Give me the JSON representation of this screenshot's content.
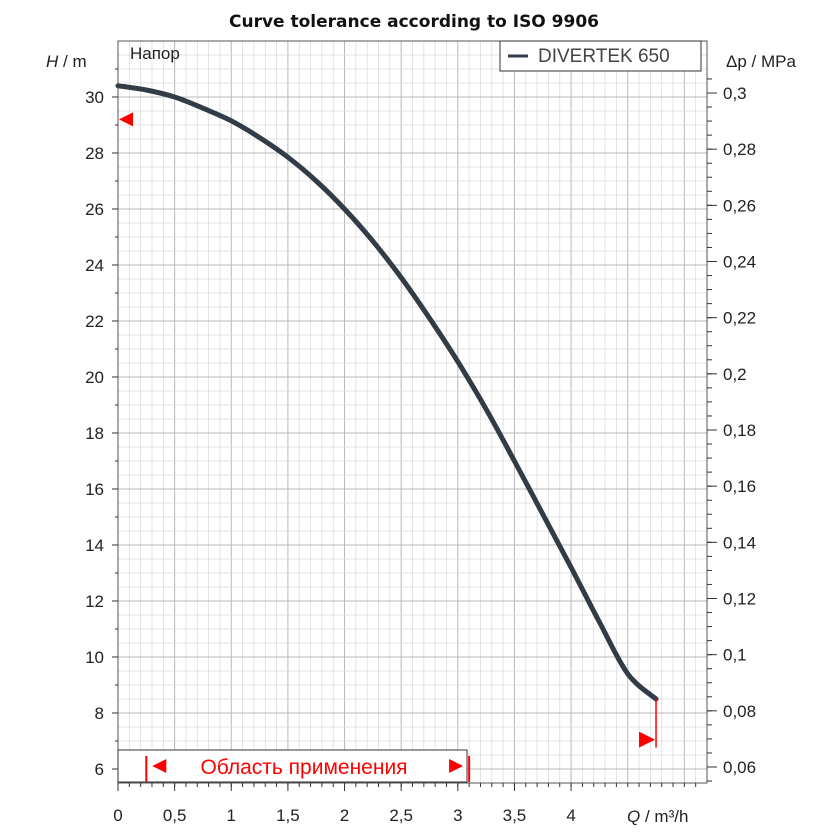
{
  "chart_data": {
    "type": "line",
    "title": "Curve tolerance according to ISO 9906",
    "series": [
      {
        "name": "DIVERTEK 650",
        "color": "#323c46",
        "x": [
          0,
          0.25,
          0.5,
          0.75,
          1.0,
          1.25,
          1.5,
          1.75,
          2.0,
          2.25,
          2.5,
          2.75,
          3.0,
          3.25,
          3.5,
          3.75,
          4.0,
          4.25,
          4.5,
          4.75
        ],
        "y": [
          30.4,
          30.25,
          30.0,
          29.6,
          29.15,
          28.55,
          27.85,
          27.0,
          26.0,
          24.85,
          23.55,
          22.1,
          20.55,
          18.85,
          17.0,
          15.1,
          13.2,
          11.25,
          9.4,
          8.5
        ]
      }
    ],
    "xlabel": {
      "var": "Q",
      "unit": "m³/h"
    },
    "ylabel": {
      "var": "H",
      "unit": "m"
    },
    "y2label": {
      "var": "Δp",
      "unit": "MPa"
    },
    "x_ticks": [
      "0",
      "0,5",
      "1",
      "1,5",
      "2",
      "2,5",
      "3",
      "3,5",
      "4"
    ],
    "y_ticks": [
      "6",
      "8",
      "10",
      "12",
      "14",
      "16",
      "18",
      "20",
      "22",
      "24",
      "26",
      "28",
      "30"
    ],
    "y2_ticks": [
      "0,06",
      "0,08",
      "0,1",
      "0,12",
      "0,14",
      "0,16",
      "0,18",
      "0,2",
      "0,22",
      "0,24",
      "0,26",
      "0,28",
      "0,3"
    ],
    "xlim": [
      0,
      5.2
    ],
    "ylim": [
      5.5,
      32
    ],
    "grid": true,
    "legend_position": "top-right",
    "series_label": "Напор",
    "range_label": "Область применения",
    "tolerance_markers": [
      {
        "x": 0,
        "y": 29.2,
        "direction": "left"
      },
      {
        "x": 4.75,
        "y": 7.05,
        "direction": "right"
      }
    ],
    "range_start": 0.25,
    "range_end": 3.1,
    "accent_color": "#ff0000"
  }
}
